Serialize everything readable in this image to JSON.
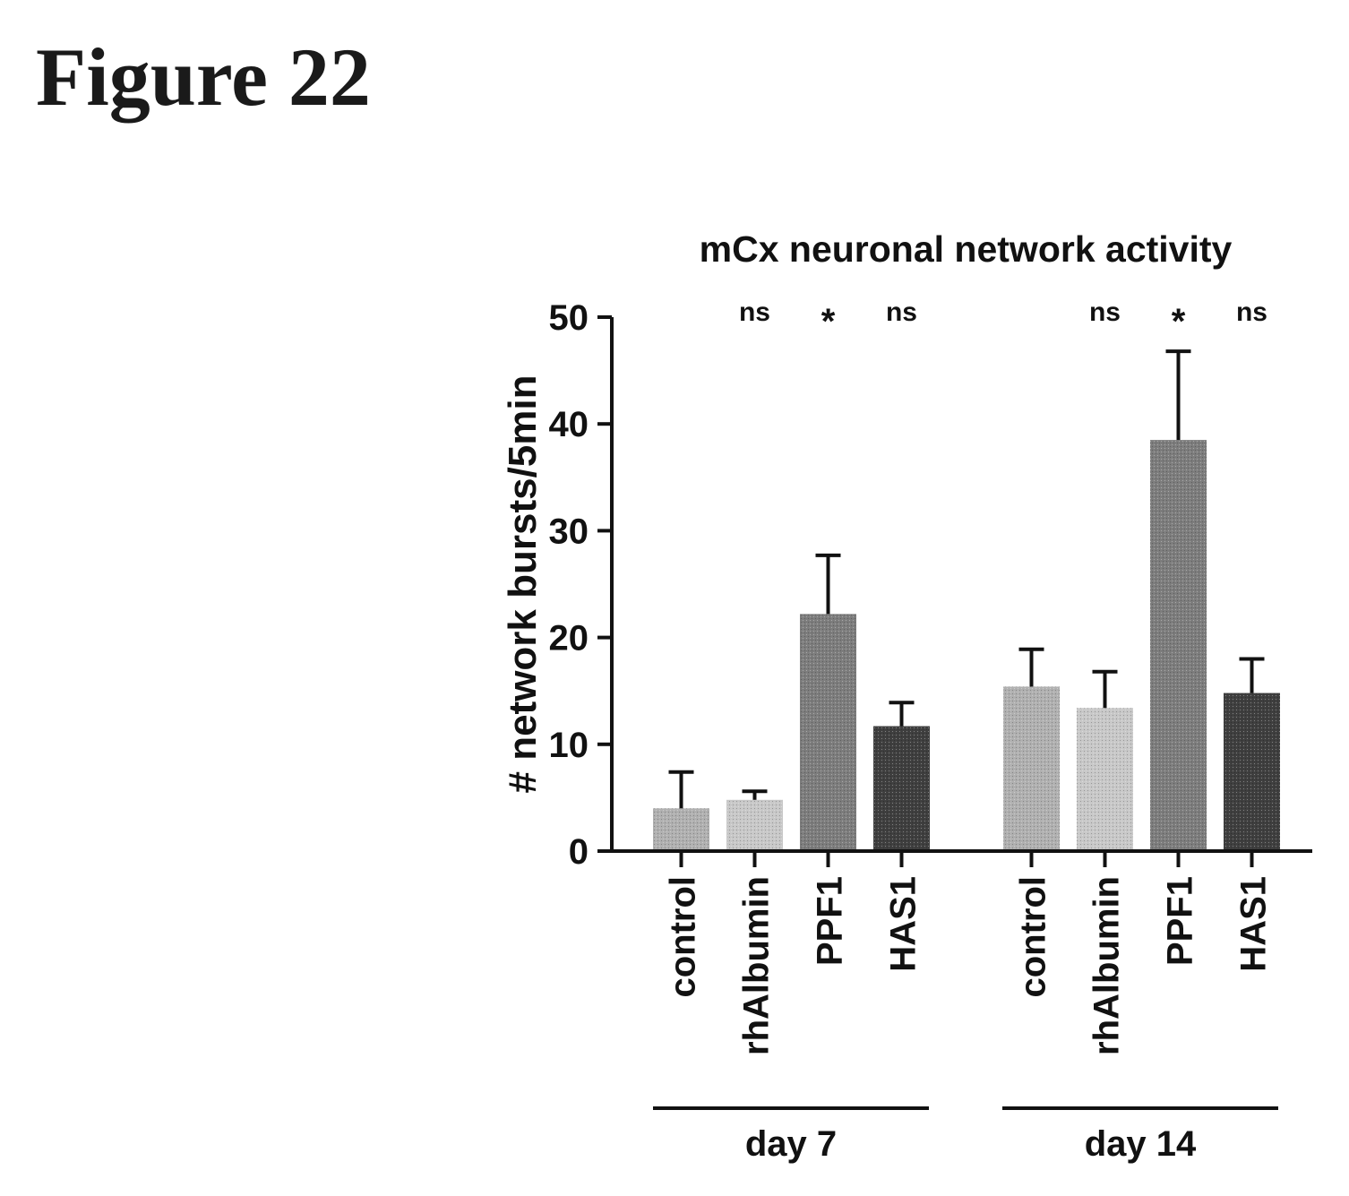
{
  "figure_label": "Figure 22",
  "chart_data": {
    "type": "bar",
    "title": "mCx neuronal network activity",
    "ylabel": "# network bursts/5min",
    "xlabel": "",
    "ylim": [
      0,
      50
    ],
    "yticks": [
      "0",
      "10",
      "20",
      "30",
      "40",
      "50"
    ],
    "grid": false,
    "legend": "none",
    "groups": [
      {
        "name": "day 7",
        "categories": [
          "control",
          "rhAlbumin",
          "PPF1",
          "HAS1"
        ],
        "values": [
          4.0,
          4.8,
          22.2,
          11.7
        ],
        "errors": [
          3.4,
          0.8,
          5.5,
          2.2
        ],
        "annotations": [
          "",
          "ns",
          "*",
          "ns"
        ]
      },
      {
        "name": "day 14",
        "categories": [
          "control",
          "rhAlbumin",
          "PPF1",
          "HAS1"
        ],
        "values": [
          15.4,
          13.4,
          38.5,
          14.8
        ],
        "errors": [
          3.5,
          3.4,
          8.3,
          3.2
        ],
        "annotations": [
          "",
          "ns",
          "*",
          "ns"
        ]
      }
    ],
    "colors": [
      "#b0b0b0",
      "#c8c8c8",
      "#7d7d7d",
      "#3f3f3f"
    ]
  }
}
